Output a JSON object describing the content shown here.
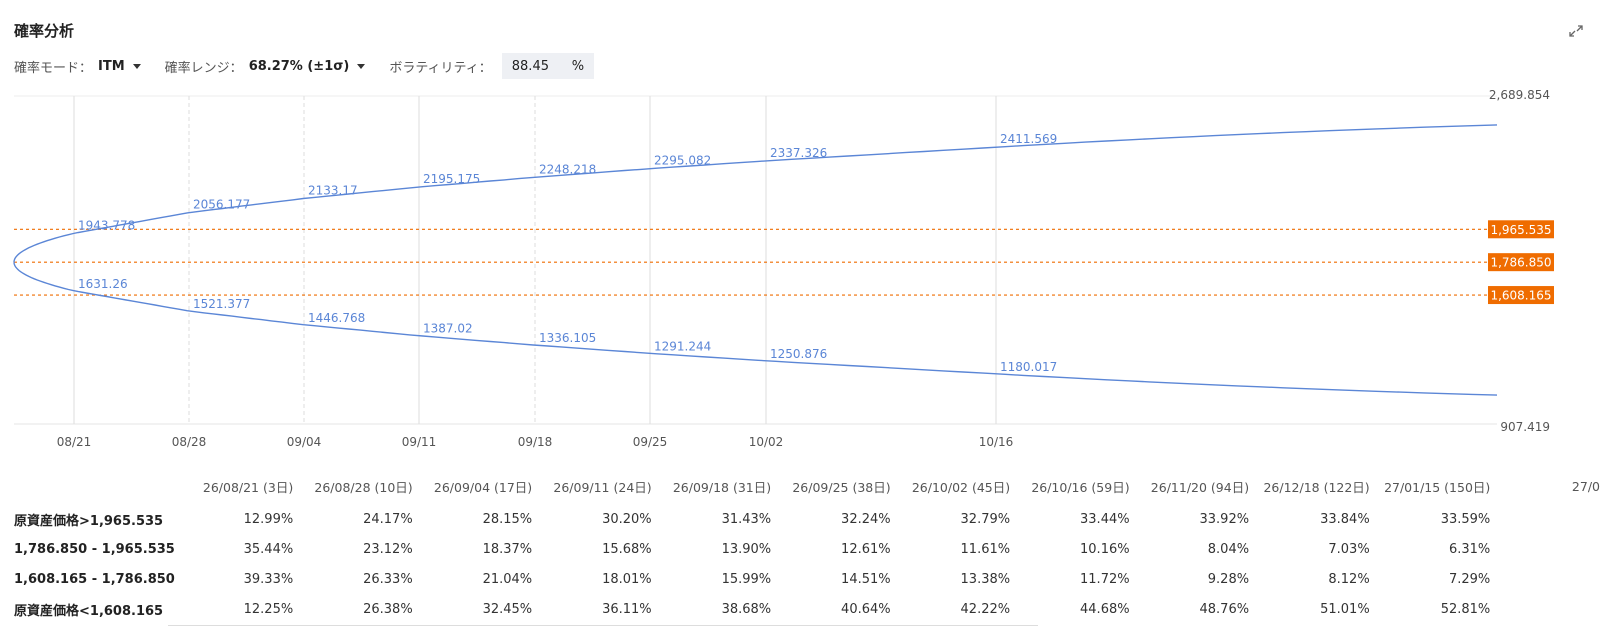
{
  "header": {
    "title": "確率分析"
  },
  "controls": {
    "mode_label": "確率モード：",
    "mode_value": "ITM",
    "range_label": "確率レンジ：",
    "range_value": "68.27% (±1σ)",
    "volatility_label": "ボラティリティ：",
    "volatility_value": "88.45",
    "volatility_unit": "%"
  },
  "chart_data": {
    "type": "line",
    "x": [
      "08/21",
      "08/28",
      "09/04",
      "09/11",
      "09/18",
      "09/25",
      "10/02",
      "10/16"
    ],
    "series": [
      {
        "values": [
          1943.778,
          2056.177,
          2133.17,
          2195.175,
          2248.218,
          2295.082,
          2337.326,
          2411.569
        ]
      },
      {
        "values": [
          1631.26,
          1521.377,
          1446.768,
          1387.02,
          1336.105,
          1291.244,
          1250.876,
          1180.017
        ]
      }
    ],
    "y_axis_labels": [
      "2,689.854",
      "907.419"
    ],
    "reference_lines": [
      {
        "value": 1965.535,
        "label": "1,965.535"
      },
      {
        "value": 1786.85,
        "label": "1,786.850"
      },
      {
        "value": 1608.165,
        "label": "1,608.165"
      }
    ],
    "ylim": [
      907.419,
      2689.854
    ],
    "colors": {
      "curve": "#5b86d6",
      "reference": "#ef6c00",
      "grid": "#dddddd"
    }
  },
  "table": {
    "columns": [
      "26/08/21 (3日)",
      "26/08/28 (10日)",
      "26/09/04 (17日)",
      "26/09/11 (24日)",
      "26/09/18 (31日)",
      "26/09/25 (38日)",
      "26/10/02 (45日)",
      "26/10/16 (59日)",
      "26/11/20 (94日)",
      "26/12/18 (122日)",
      "27/01/15 (150日)",
      "27/0"
    ],
    "rows": [
      {
        "label": "原資産価格>1,965.535",
        "values": [
          "12.99%",
          "24.17%",
          "28.15%",
          "30.20%",
          "31.43%",
          "32.24%",
          "32.79%",
          "33.44%",
          "33.92%",
          "33.84%",
          "33.59%",
          ""
        ]
      },
      {
        "label": "1,786.850 - 1,965.535",
        "values": [
          "35.44%",
          "23.12%",
          "18.37%",
          "15.68%",
          "13.90%",
          "12.61%",
          "11.61%",
          "10.16%",
          "8.04%",
          "7.03%",
          "6.31%",
          ""
        ]
      },
      {
        "label": "1,608.165 - 1,786.850",
        "values": [
          "39.33%",
          "26.33%",
          "21.04%",
          "18.01%",
          "15.99%",
          "14.51%",
          "13.38%",
          "11.72%",
          "9.28%",
          "8.12%",
          "7.29%",
          ""
        ]
      },
      {
        "label": "原資産価格<1,608.165",
        "values": [
          "12.25%",
          "26.38%",
          "32.45%",
          "36.11%",
          "38.68%",
          "40.64%",
          "42.22%",
          "44.68%",
          "48.76%",
          "51.01%",
          "52.81%",
          ""
        ]
      }
    ]
  }
}
